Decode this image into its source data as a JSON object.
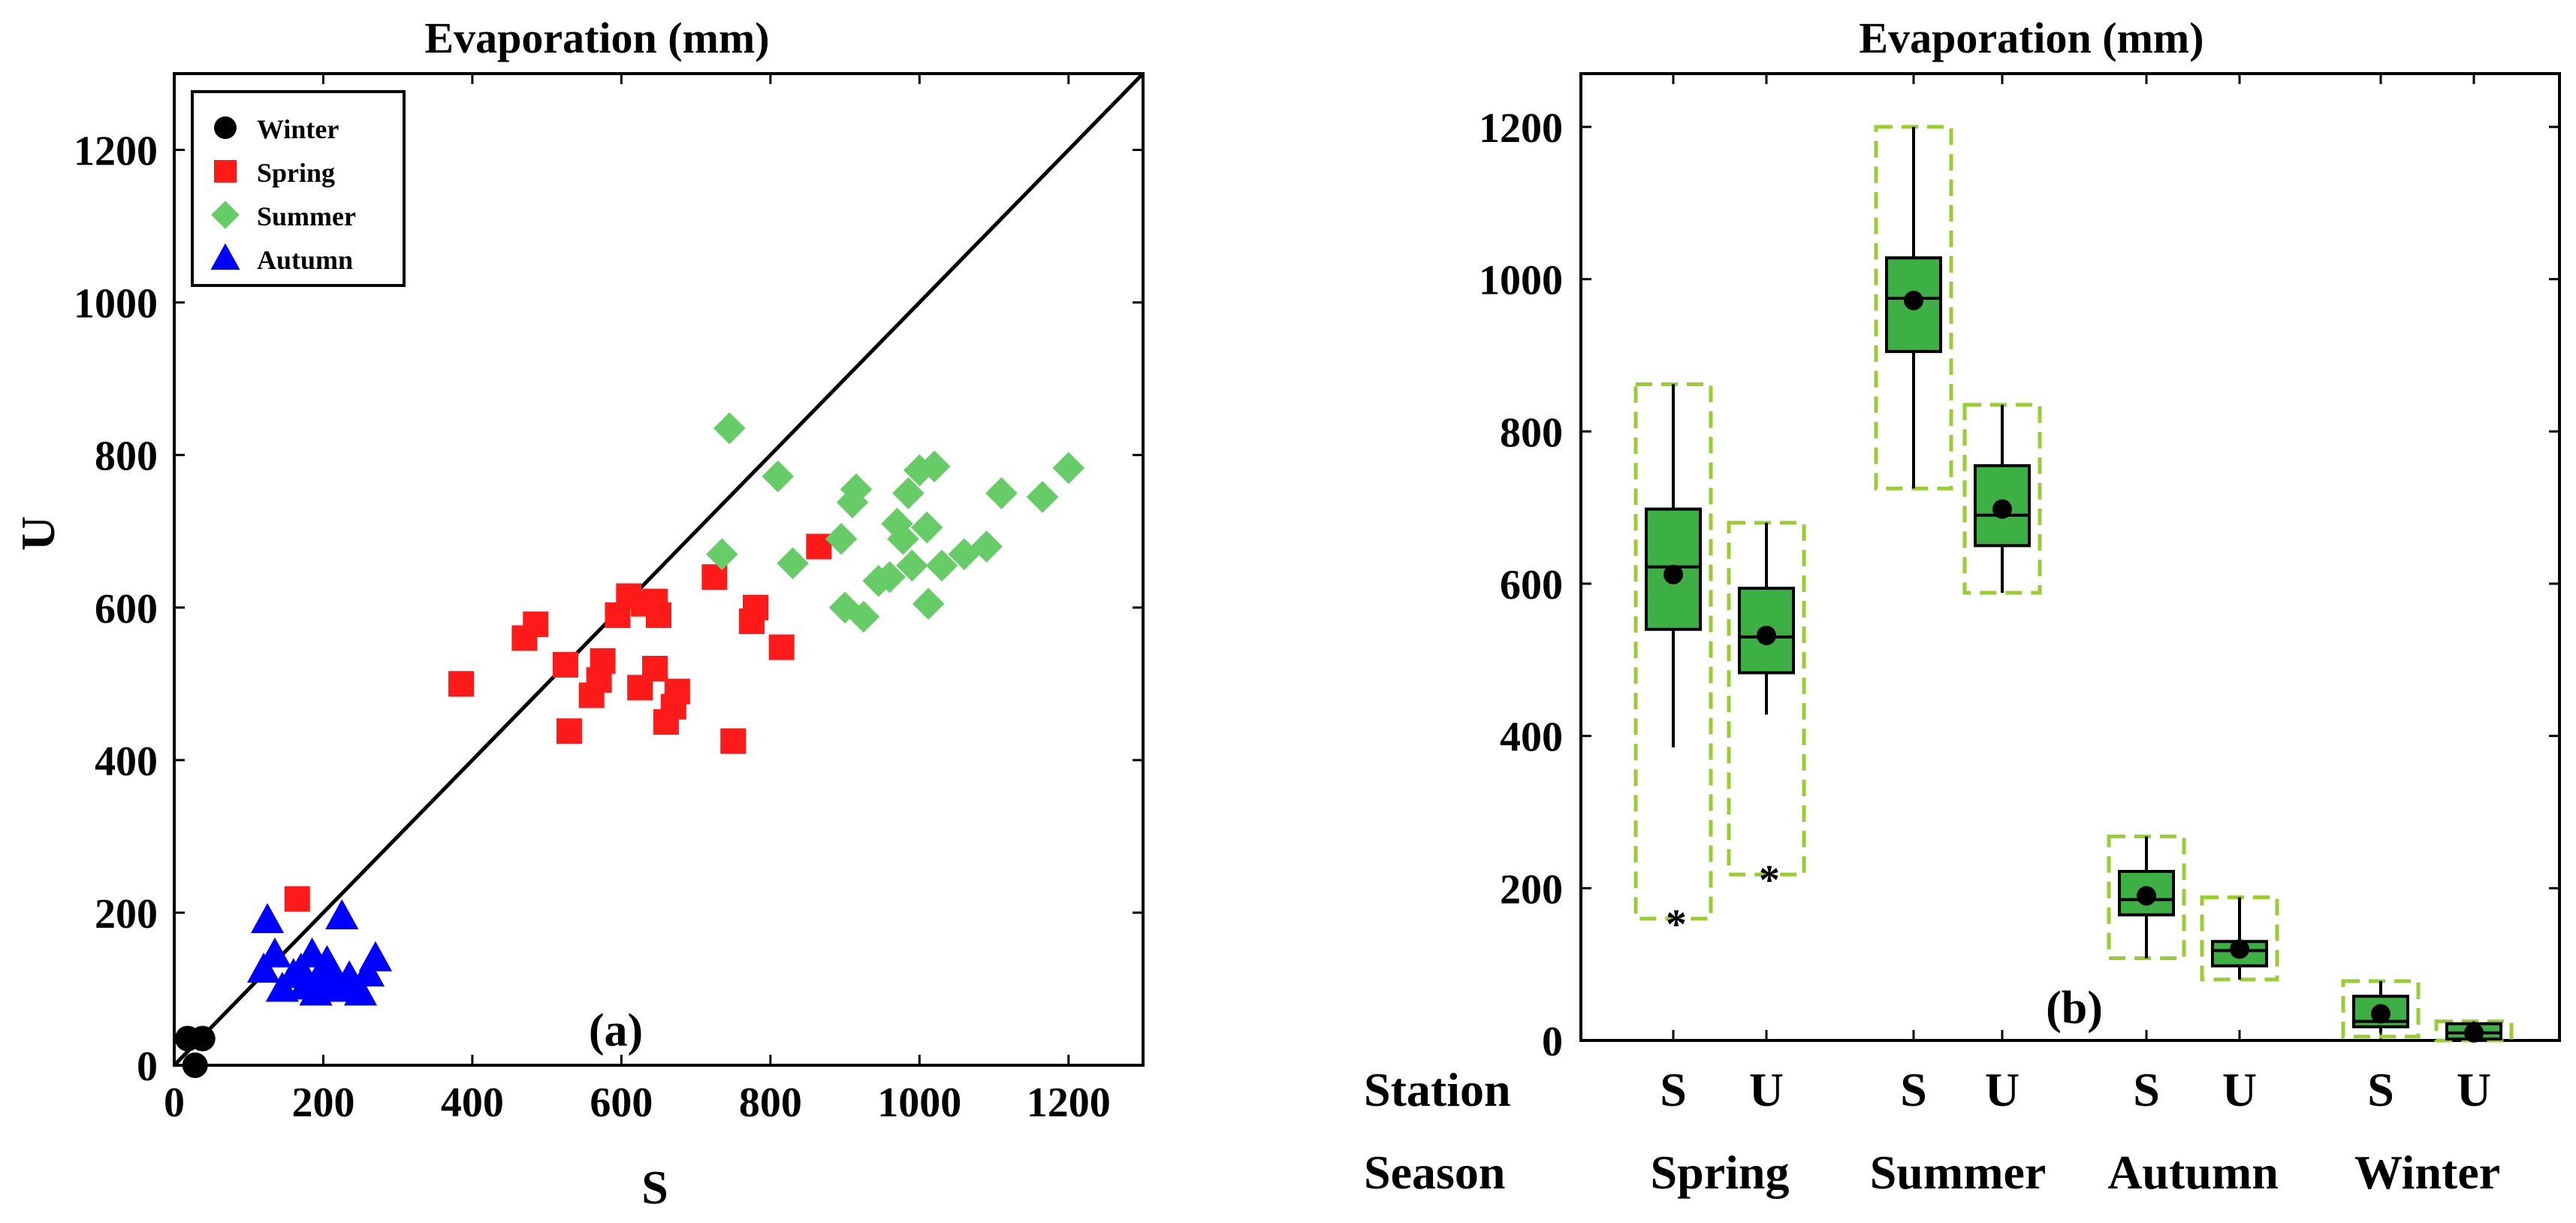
{
  "chart_data": [
    {
      "type": "scatter",
      "title": "Evaporation (mm)",
      "xlabel": "S",
      "ylabel": "U",
      "xlim": [
        0,
        1300
      ],
      "ylim": [
        0,
        1300
      ],
      "xticks": [
        0,
        200,
        400,
        600,
        800,
        1000,
        1200
      ],
      "yticks": [
        0,
        200,
        400,
        600,
        800,
        1000,
        1200
      ],
      "reference_line": "1:1",
      "legend_position": "top-left",
      "annotation": "(a)",
      "series": [
        {
          "name": "Winter",
          "marker": "circle",
          "color": "#000000",
          "points": [
            [
              18,
              35
            ],
            [
              38,
              35
            ],
            [
              28,
              0
            ]
          ]
        },
        {
          "name": "Spring",
          "marker": "square",
          "color": "#ff1a1a",
          "points": [
            [
              385,
              500
            ],
            [
              165,
              218
            ],
            [
              470,
              560
            ],
            [
              485,
              578
            ],
            [
              525,
              525
            ],
            [
              530,
              438
            ],
            [
              560,
              485
            ],
            [
              570,
              505
            ],
            [
              575,
              530
            ],
            [
              595,
              590
            ],
            [
              610,
              615
            ],
            [
              625,
              495
            ],
            [
              630,
              605
            ],
            [
              645,
              608
            ],
            [
              645,
              520
            ],
            [
              650,
              590
            ],
            [
              660,
              450
            ],
            [
              670,
              470
            ],
            [
              675,
              490
            ],
            [
              725,
              640
            ],
            [
              750,
              425
            ],
            [
              775,
              582
            ],
            [
              780,
              600
            ],
            [
              815,
              548
            ],
            [
              865,
              680
            ]
          ]
        },
        {
          "name": "Summer",
          "marker": "diamond",
          "color": "#66cc66",
          "points": [
            [
              735,
              670
            ],
            [
              745,
              835
            ],
            [
              810,
              772
            ],
            [
              830,
              658
            ],
            [
              895,
              690
            ],
            [
              900,
              600
            ],
            [
              910,
              738
            ],
            [
              915,
              755
            ],
            [
              925,
              588
            ],
            [
              945,
              635
            ],
            [
              960,
              640
            ],
            [
              970,
              710
            ],
            [
              978,
              690
            ],
            [
              985,
              750
            ],
            [
              990,
              655
            ],
            [
              1000,
              780
            ],
            [
              1010,
              705
            ],
            [
              1012,
              605
            ],
            [
              1020,
              785
            ],
            [
              1030,
              655
            ],
            [
              1060,
              670
            ],
            [
              1090,
              680
            ],
            [
              1110,
              750
            ],
            [
              1165,
              745
            ],
            [
              1200,
              783
            ]
          ]
        },
        {
          "name": "Autumn",
          "marker": "triangle",
          "color": "#0000ff",
          "points": [
            [
              120,
              125
            ],
            [
              125,
              190
            ],
            [
              135,
              145
            ],
            [
              145,
              100
            ],
            [
              160,
              118
            ],
            [
              170,
              125
            ],
            [
              175,
              103
            ],
            [
              185,
              145
            ],
            [
              190,
              95
            ],
            [
              195,
              115
            ],
            [
              200,
              100
            ],
            [
              205,
              135
            ],
            [
              210,
              120
            ],
            [
              215,
              105
            ],
            [
              220,
              100
            ],
            [
              225,
              195
            ],
            [
              235,
              115
            ],
            [
              240,
              100
            ],
            [
              250,
              95
            ],
            [
              260,
              120
            ],
            [
              270,
              140
            ]
          ]
        }
      ]
    },
    {
      "type": "boxplot",
      "title": "Evaporation (mm)",
      "ylim": [
        0,
        1270
      ],
      "yticks": [
        0,
        200,
        400,
        600,
        800,
        1000,
        1200
      ],
      "annotation": "(b)",
      "row_labels": {
        "station": "Station",
        "season": "Season"
      },
      "seasons": [
        "Spring",
        "Summer",
        "Autumn",
        "Winter"
      ],
      "boxes": [
        {
          "station": "S",
          "season": "Spring",
          "whisker_low": 385,
          "q1": 540,
          "median": 622,
          "q3": 698,
          "whisker_high": 862,
          "mean": 612,
          "range_low": 160,
          "range_high": 862,
          "outliers": [
            160
          ]
        },
        {
          "station": "U",
          "season": "Spring",
          "whisker_low": 428,
          "q1": 483,
          "median": 530,
          "q3": 594,
          "whisker_high": 680,
          "mean": 532,
          "range_low": 218,
          "range_high": 680,
          "outliers": [
            218
          ]
        },
        {
          "station": "S",
          "season": "Summer",
          "whisker_low": 725,
          "q1": 905,
          "median": 975,
          "q3": 1028,
          "whisker_high": 1200,
          "mean": 972,
          "range_low": 725,
          "range_high": 1200,
          "outliers": []
        },
        {
          "station": "U",
          "season": "Summer",
          "whisker_low": 588,
          "q1": 650,
          "median": 690,
          "q3": 755,
          "whisker_high": 835,
          "mean": 698,
          "range_low": 588,
          "range_high": 835,
          "outliers": []
        },
        {
          "station": "S",
          "season": "Autumn",
          "whisker_low": 108,
          "q1": 165,
          "median": 185,
          "q3": 222,
          "whisker_high": 268,
          "mean": 190,
          "range_low": 108,
          "range_high": 268,
          "outliers": []
        },
        {
          "station": "U",
          "season": "Autumn",
          "whisker_low": 80,
          "q1": 98,
          "median": 118,
          "q3": 130,
          "whisker_high": 188,
          "mean": 120,
          "range_low": 80,
          "range_high": 188,
          "outliers": []
        },
        {
          "station": "S",
          "season": "Winter",
          "whisker_low": 10,
          "q1": 18,
          "median": 25,
          "q3": 58,
          "whisker_high": 78,
          "mean": 35,
          "range_low": 5,
          "range_high": 78,
          "outliers": []
        },
        {
          "station": "U",
          "season": "Winter",
          "whisker_low": 0,
          "q1": 2,
          "median": 10,
          "q3": 22,
          "whisker_high": 25,
          "mean": 10,
          "range_low": 0,
          "range_high": 25,
          "outliers": []
        }
      ],
      "colors": {
        "box_fill": "#3cb043",
        "range_box": "#9acd32",
        "outline": "#000000"
      }
    }
  ]
}
